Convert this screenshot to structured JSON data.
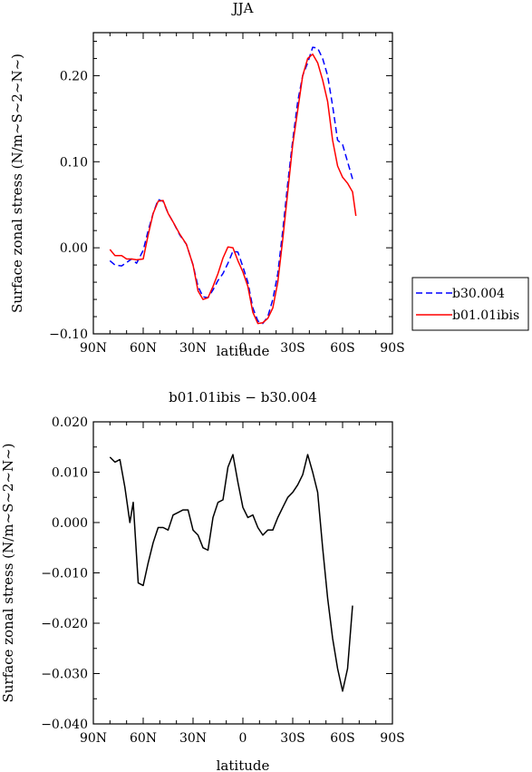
{
  "chart_data": [
    {
      "type": "line",
      "title": "JJA",
      "xlabel": "latitude",
      "ylabel": "Surface zonal stress (N/m~S~2~N~)",
      "xlim": [
        90,
        -90
      ],
      "ylim": [
        -0.1,
        0.25
      ],
      "x_ticks": [
        "90N",
        "60N",
        "30N",
        "0",
        "30S",
        "60S",
        "90S"
      ],
      "y_ticks": [
        "−0.10",
        "0.00",
        "0.10",
        "0.20"
      ],
      "y_tick_values": [
        -0.1,
        0.0,
        0.1,
        0.2
      ],
      "grid": false,
      "legend": "right",
      "series": [
        {
          "name": "b30.004",
          "color": "#0000ff",
          "dash": "dashed",
          "x": [
            80,
            77,
            73,
            70,
            67,
            64,
            60,
            57,
            54,
            51,
            48,
            45,
            42,
            38,
            34,
            30,
            27,
            24,
            21,
            18,
            15,
            12,
            9,
            6,
            3,
            0,
            -3,
            -6,
            -9,
            -12,
            -15,
            -18,
            -21,
            -24,
            -27,
            -30,
            -33,
            -36,
            -39,
            -42,
            -45,
            -48,
            -51,
            -54,
            -57,
            -60,
            -63,
            -66
          ],
          "y": [
            -0.015,
            -0.02,
            -0.021,
            -0.017,
            -0.013,
            -0.018,
            -0.003,
            0.02,
            0.04,
            0.056,
            0.054,
            0.04,
            0.03,
            0.015,
            0.004,
            -0.02,
            -0.045,
            -0.057,
            -0.058,
            -0.049,
            -0.038,
            -0.03,
            -0.018,
            -0.004,
            -0.005,
            -0.022,
            -0.04,
            -0.07,
            -0.085,
            -0.088,
            -0.08,
            -0.06,
            -0.03,
            0.02,
            0.075,
            0.125,
            0.17,
            0.2,
            0.215,
            0.233,
            0.232,
            0.22,
            0.2,
            0.165,
            0.125,
            0.12,
            0.1,
            0.08
          ]
        },
        {
          "name": "b01.01ibis",
          "color": "#ff0000",
          "dash": "solid",
          "x": [
            80,
            77,
            73,
            70,
            67,
            64,
            60,
            57,
            54,
            51,
            48,
            45,
            42,
            38,
            34,
            30,
            27,
            24,
            21,
            18,
            15,
            12,
            9,
            6,
            3,
            0,
            -3,
            -6,
            -9,
            -12,
            -15,
            -18,
            -21,
            -24,
            -27,
            -30,
            -33,
            -36,
            -39,
            -42,
            -45,
            -48,
            -51,
            -54,
            -57,
            -60,
            -63,
            -66,
            -68
          ],
          "y": [
            -0.002,
            -0.009,
            -0.009,
            -0.013,
            -0.013,
            -0.014,
            -0.013,
            0.015,
            0.04,
            0.054,
            0.055,
            0.04,
            0.03,
            0.016,
            0.004,
            -0.02,
            -0.05,
            -0.06,
            -0.058,
            -0.045,
            -0.03,
            -0.012,
            0.001,
            0.0,
            -0.015,
            -0.028,
            -0.045,
            -0.075,
            -0.088,
            -0.087,
            -0.082,
            -0.07,
            -0.04,
            0.01,
            0.065,
            0.12,
            0.16,
            0.2,
            0.22,
            0.225,
            0.215,
            0.195,
            0.17,
            0.125,
            0.095,
            0.082,
            0.075,
            0.065,
            0.037
          ]
        }
      ]
    },
    {
      "type": "line",
      "title": "b01.01ibis − b30.004",
      "xlabel": "latitude",
      "ylabel": "Surface zonal stress (N/m~S~2~N~)",
      "xlim": [
        90,
        -90
      ],
      "ylim": [
        -0.04,
        0.02
      ],
      "x_ticks": [
        "90N",
        "60N",
        "30N",
        "0",
        "30S",
        "60S",
        "90S"
      ],
      "y_ticks": [
        "−0.040",
        "−0.030",
        "−0.020",
        "−0.010",
        "0.000",
        "0.010",
        "0.020"
      ],
      "y_tick_values": [
        -0.04,
        -0.03,
        -0.02,
        -0.01,
        0.0,
        0.01,
        0.02
      ],
      "grid": false,
      "series": [
        {
          "color": "#000000",
          "dash": "solid",
          "x": [
            80,
            77,
            74,
            71,
            68,
            66,
            63,
            60,
            57,
            54,
            51,
            48,
            45,
            42,
            39,
            36,
            33,
            30,
            27,
            24,
            21,
            18,
            15,
            12,
            9,
            6,
            3,
            0,
            -3,
            -6,
            -9,
            -12,
            -15,
            -18,
            -21,
            -24,
            -27,
            -30,
            -33,
            -36,
            -39,
            -42,
            -45,
            -48,
            -51,
            -54,
            -57,
            -60,
            -63,
            -66
          ],
          "y": [
            0.013,
            0.012,
            0.0125,
            0.007,
            0.0,
            0.004,
            -0.012,
            -0.0125,
            -0.008,
            -0.004,
            -0.001,
            -0.001,
            -0.0015,
            0.0015,
            0.002,
            0.0025,
            0.0025,
            -0.0015,
            -0.0025,
            -0.005,
            -0.0055,
            0.001,
            0.004,
            0.0045,
            0.011,
            0.0135,
            0.008,
            0.003,
            0.001,
            0.0015,
            -0.001,
            -0.0025,
            -0.0015,
            -0.0015,
            0.001,
            0.003,
            0.005,
            0.006,
            0.0075,
            0.0095,
            0.0135,
            0.01,
            0.006,
            -0.005,
            -0.015,
            -0.023,
            -0.029,
            -0.0335,
            -0.029,
            -0.0165
          ]
        }
      ]
    }
  ]
}
